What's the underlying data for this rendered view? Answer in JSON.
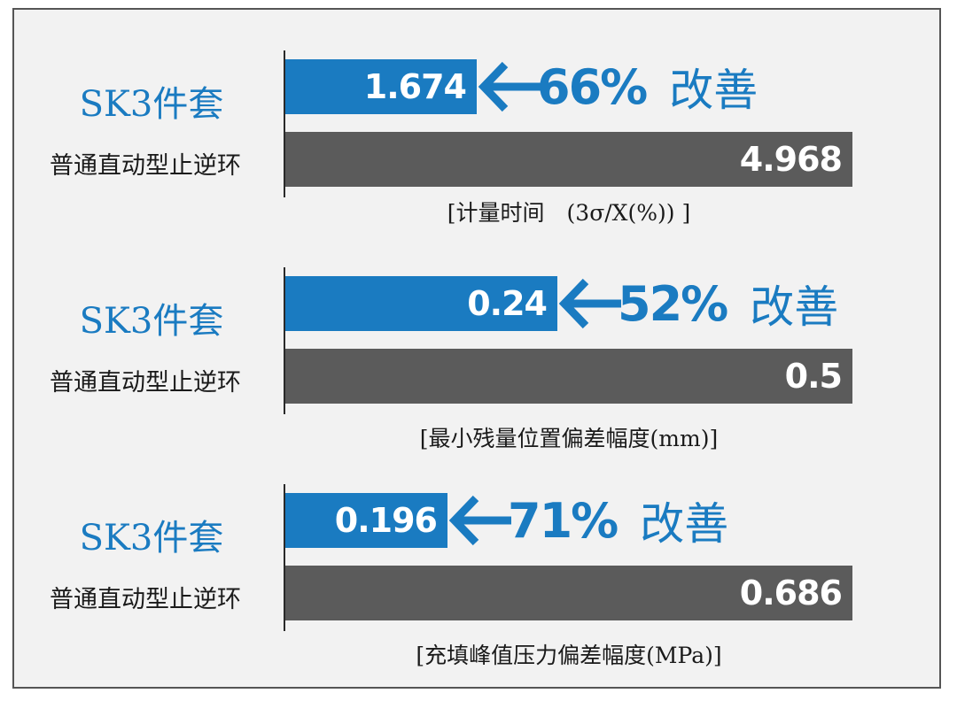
{
  "chart_data": [
    {
      "type": "bar",
      "orientation": "horizontal",
      "categories": [
        "SK3件套",
        "普通直动型止逆环"
      ],
      "values": [
        1.674,
        4.968
      ],
      "improvement_label": "66%",
      "improvement_text": "改善",
      "metric_label": "[计量时间　(3σ/X(%)) ]",
      "colors": [
        "#1a7bc1",
        "#5b5b5b"
      ],
      "xlim": [
        0,
        4.968
      ]
    },
    {
      "type": "bar",
      "orientation": "horizontal",
      "categories": [
        "SK3件套",
        "普通直动型止逆环"
      ],
      "values": [
        0.24,
        0.5
      ],
      "improvement_label": "52%",
      "improvement_text": "改善",
      "metric_label": "[最小残量位置偏差幅度(mm)]",
      "colors": [
        "#1a7bc1",
        "#5b5b5b"
      ],
      "xlim": [
        0,
        0.5
      ]
    },
    {
      "type": "bar",
      "orientation": "horizontal",
      "categories": [
        "SK3件套",
        "普通直动型止逆环"
      ],
      "values": [
        0.196,
        0.686
      ],
      "improvement_label": "71%",
      "improvement_text": "改善",
      "metric_label": "[充填峰值压力偏差幅度(MPa)]",
      "colors": [
        "#1a7bc1",
        "#5b5b5b"
      ],
      "xlim": [
        0,
        0.686
      ]
    }
  ],
  "icons": {
    "arrow": "left-arrow-icon"
  },
  "colors": {
    "accent": "#1a7bc1",
    "baseline": "#5b5b5b",
    "background": "#f2f2f2"
  }
}
